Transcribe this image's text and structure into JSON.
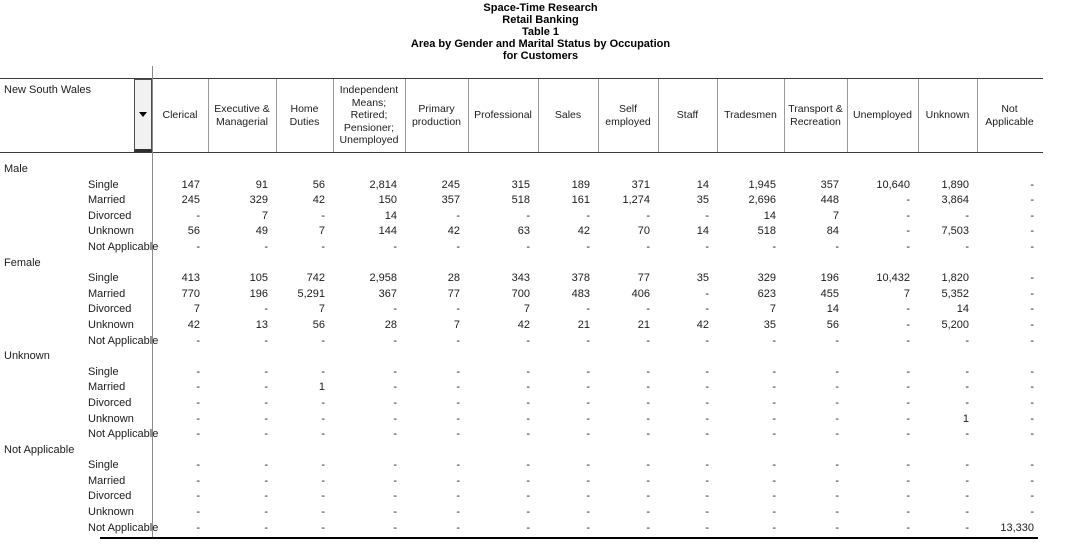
{
  "titles": {
    "lines": [
      "Space-Time Research",
      "Retail Banking",
      "Table 1",
      "Area by Gender and Marital Status by Occupation",
      "for Customers"
    ]
  },
  "area_selector": {
    "value": "New South Wales",
    "icon": "caret-down-icon"
  },
  "colors": {
    "border_dark": "#3c3c3c",
    "border_light": "#9b9b9b",
    "bottom_border": "#000000",
    "button_face": "#f1f1f1",
    "text": "#1c1c1c"
  },
  "table": {
    "columns": [
      "Clerical",
      "Executive & Managerial",
      "Home Duties",
      "Independent Means; Retired; Pensioner; Unemployed",
      "Primary production",
      "Professional",
      "Sales",
      "Self employed",
      "Staff",
      "Tradesmen",
      "Transport & Recreation",
      "Unemployed",
      "Unknown",
      "Not Applicable"
    ],
    "groups": [
      {
        "label": "Male",
        "rows": [
          {
            "label": "Single",
            "values": [
              "147",
              "91",
              "56",
              "2,814",
              "245",
              "315",
              "189",
              "371",
              "14",
              "1,945",
              "357",
              "10,640",
              "1,890",
              "-"
            ]
          },
          {
            "label": "Married",
            "values": [
              "245",
              "329",
              "42",
              "150",
              "357",
              "518",
              "161",
              "1,274",
              "35",
              "2,696",
              "448",
              "-",
              "3,864",
              "-"
            ]
          },
          {
            "label": "Divorced",
            "values": [
              "-",
              "7",
              "-",
              "14",
              "-",
              "-",
              "-",
              "-",
              "-",
              "14",
              "7",
              "-",
              "-",
              "-"
            ]
          },
          {
            "label": "Unknown",
            "values": [
              "56",
              "49",
              "7",
              "144",
              "42",
              "63",
              "42",
              "70",
              "14",
              "518",
              "84",
              "-",
              "7,503",
              "-"
            ]
          },
          {
            "label": "Not Applicable",
            "values": [
              "-",
              "-",
              "-",
              "-",
              "-",
              "-",
              "-",
              "-",
              "-",
              "-",
              "-",
              "-",
              "-",
              "-"
            ]
          }
        ]
      },
      {
        "label": "Female",
        "rows": [
          {
            "label": "Single",
            "values": [
              "413",
              "105",
              "742",
              "2,958",
              "28",
              "343",
              "378",
              "77",
              "35",
              "329",
              "196",
              "10,432",
              "1,820",
              "-"
            ]
          },
          {
            "label": "Married",
            "values": [
              "770",
              "196",
              "5,291",
              "367",
              "77",
              "700",
              "483",
              "406",
              "-",
              "623",
              "455",
              "7",
              "5,352",
              "-"
            ]
          },
          {
            "label": "Divorced",
            "values": [
              "7",
              "-",
              "7",
              "-",
              "-",
              "7",
              "-",
              "-",
              "-",
              "7",
              "14",
              "-",
              "14",
              "-"
            ]
          },
          {
            "label": "Unknown",
            "values": [
              "42",
              "13",
              "56",
              "28",
              "7",
              "42",
              "21",
              "21",
              "42",
              "35",
              "56",
              "-",
              "5,200",
              "-"
            ]
          },
          {
            "label": "Not Applicable",
            "values": [
              "-",
              "-",
              "-",
              "-",
              "-",
              "-",
              "-",
              "-",
              "-",
              "-",
              "-",
              "-",
              "-",
              "-"
            ]
          }
        ]
      },
      {
        "label": "Unknown",
        "rows": [
          {
            "label": "Single",
            "values": [
              "-",
              "-",
              "-",
              "-",
              "-",
              "-",
              "-",
              "-",
              "-",
              "-",
              "-",
              "-",
              "-",
              "-"
            ]
          },
          {
            "label": "Married",
            "values": [
              "-",
              "-",
              "1",
              "-",
              "-",
              "-",
              "-",
              "-",
              "-",
              "-",
              "-",
              "-",
              "-",
              "-"
            ]
          },
          {
            "label": "Divorced",
            "values": [
              "-",
              "-",
              "-",
              "-",
              "-",
              "-",
              "-",
              "-",
              "-",
              "-",
              "-",
              "-",
              "-",
              "-"
            ]
          },
          {
            "label": "Unknown",
            "values": [
              "-",
              "-",
              "-",
              "-",
              "-",
              "-",
              "-",
              "-",
              "-",
              "-",
              "-",
              "-",
              "1",
              "-"
            ]
          },
          {
            "label": "Not Applicable",
            "values": [
              "-",
              "-",
              "-",
              "-",
              "-",
              "-",
              "-",
              "-",
              "-",
              "-",
              "-",
              "-",
              "-",
              "-"
            ]
          }
        ]
      },
      {
        "label": "Not Applicable",
        "rows": [
          {
            "label": "Single",
            "values": [
              "-",
              "-",
              "-",
              "-",
              "-",
              "-",
              "-",
              "-",
              "-",
              "-",
              "-",
              "-",
              "-",
              "-"
            ]
          },
          {
            "label": "Married",
            "values": [
              "-",
              "-",
              "-",
              "-",
              "-",
              "-",
              "-",
              "-",
              "-",
              "-",
              "-",
              "-",
              "-",
              "-"
            ]
          },
          {
            "label": "Divorced",
            "values": [
              "-",
              "-",
              "-",
              "-",
              "-",
              "-",
              "-",
              "-",
              "-",
              "-",
              "-",
              "-",
              "-",
              "-"
            ]
          },
          {
            "label": "Unknown",
            "values": [
              "-",
              "-",
              "-",
              "-",
              "-",
              "-",
              "-",
              "-",
              "-",
              "-",
              "-",
              "-",
              "-",
              "-"
            ]
          },
          {
            "label": "Not Applicable",
            "values": [
              "-",
              "-",
              "-",
              "-",
              "-",
              "-",
              "-",
              "-",
              "-",
              "-",
              "-",
              "-",
              "-",
              "13,330"
            ]
          }
        ]
      }
    ]
  }
}
